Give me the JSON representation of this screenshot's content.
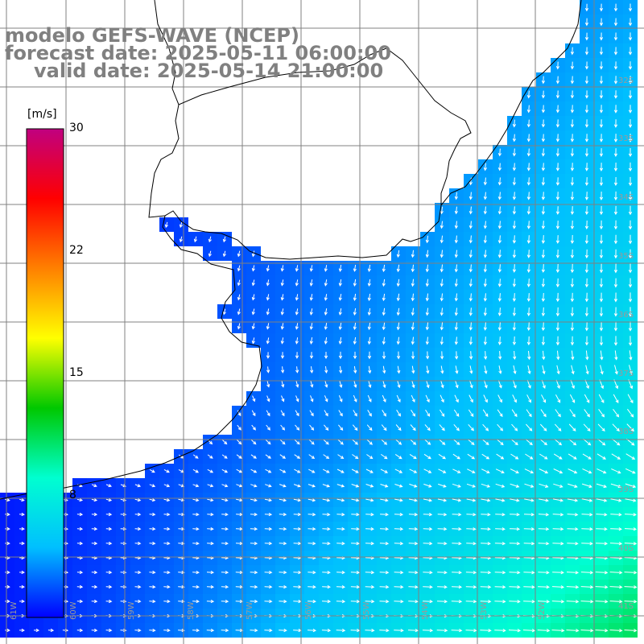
{
  "header": {
    "line1": "modelo GEFS-WAVE (NCEP)",
    "line2": "forecast date: 2025-05-11 06:00:00",
    "line3": "valid date: 2025-05-14 21:00:00"
  },
  "colorbar": {
    "unit": "[m/s]",
    "ticks": [
      "30",
      "22",
      "15",
      "8"
    ],
    "min": 0,
    "max": 30,
    "colors": [
      "#0000ff",
      "#00bfff",
      "#00ffd0",
      "#00c800",
      "#ffff00",
      "#ff8000",
      "#ff0000",
      "#c00080"
    ]
  },
  "grid": {
    "lat_labels": [
      "32S",
      "33S",
      "34S",
      "35S",
      "36S",
      "37S",
      "38S",
      "39S",
      "40S",
      "41S"
    ],
    "lon_labels": [
      "61W",
      "60W",
      "59W",
      "58W",
      "57W",
      "56W",
      "55W",
      "54W",
      "53W",
      "52W"
    ]
  },
  "field": {
    "variable": "wind speed",
    "colors": {
      "land": "#ffffff",
      "coast": "#000000",
      "grid": "#808080",
      "arrow": "#ffffff"
    }
  }
}
